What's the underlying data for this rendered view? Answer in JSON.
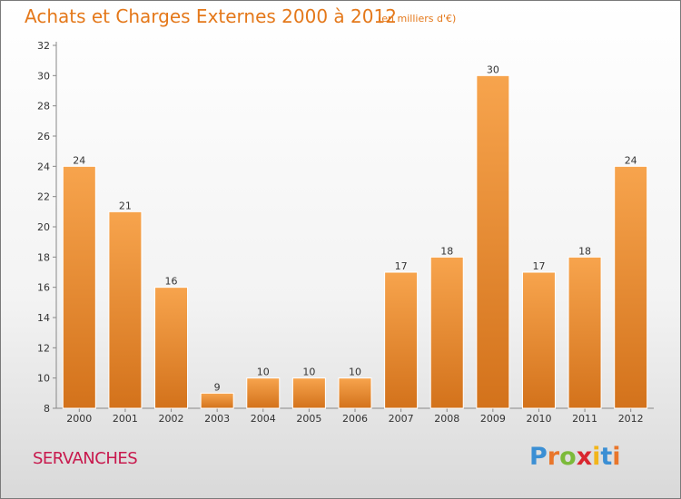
{
  "header": {
    "title": "Achats et Charges Externes 2000 à 2012",
    "subtitle": "(en milliers d'€)"
  },
  "footer": {
    "commune": "SERVANCHES",
    "logo_letters": [
      {
        "char": "P",
        "color": "#3b8fd4"
      },
      {
        "char": "r",
        "color": "#e9762b"
      },
      {
        "char": "o",
        "color": "#7cba3a"
      },
      {
        "char": "x",
        "color": "#d9262f"
      },
      {
        "char": "i",
        "color": "#f2b51b"
      },
      {
        "char": "t",
        "color": "#3b8fd4"
      },
      {
        "char": "i",
        "color": "#e9762b"
      }
    ]
  },
  "chart_data": {
    "type": "bar",
    "title": "Achats et Charges Externes 2000 à 2012",
    "subtitle": "(en milliers d'€)",
    "categories": [
      "2000",
      "2001",
      "2002",
      "2003",
      "2004",
      "2005",
      "2006",
      "2007",
      "2008",
      "2009",
      "2010",
      "2011",
      "2012"
    ],
    "values": [
      24,
      21,
      16,
      9,
      10,
      10,
      10,
      17,
      18,
      30,
      17,
      18,
      24
    ],
    "ylim": [
      8,
      32
    ],
    "yticks": [
      8,
      10,
      12,
      14,
      16,
      18,
      20,
      22,
      24,
      26,
      28,
      30,
      32
    ],
    "grid": false,
    "legend": "none",
    "colors": {
      "bar_top": "#f7a44d",
      "bar_bottom": "#d3721b",
      "bar_edge": "#ffffff"
    }
  }
}
